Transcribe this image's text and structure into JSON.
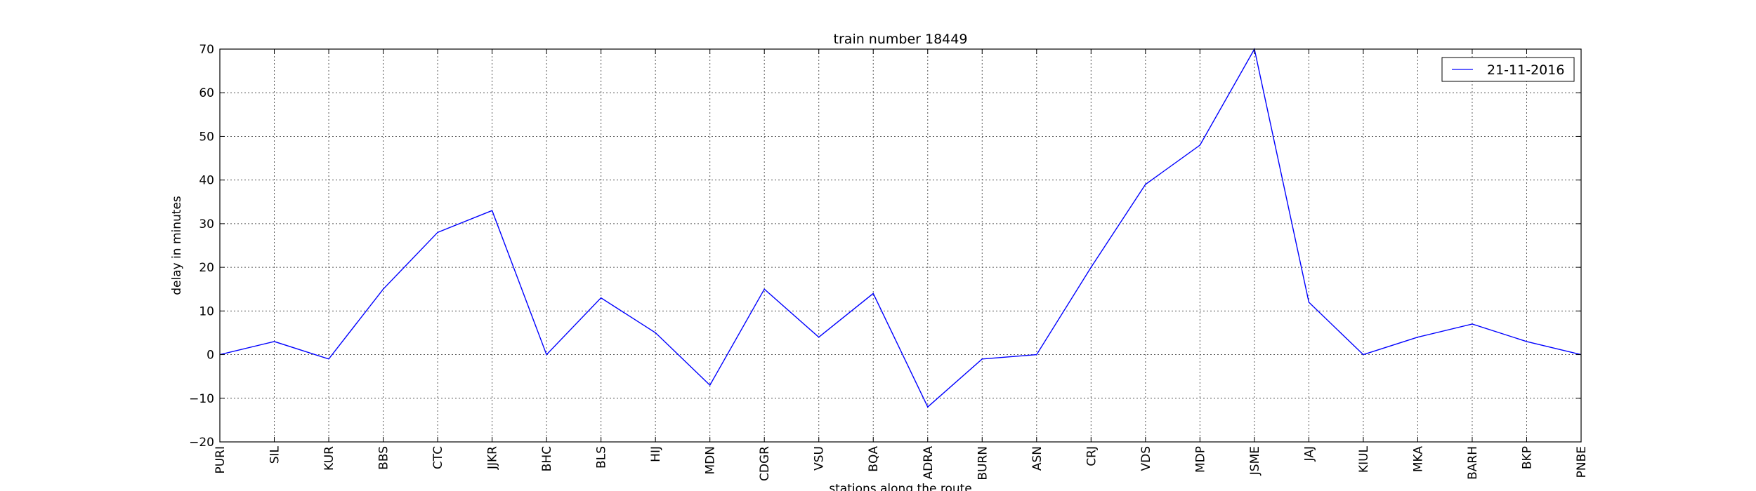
{
  "chart_data": {
    "type": "line",
    "title": "train number 18449",
    "xlabel": "stations along the route",
    "ylabel": "delay in minutes",
    "categories": [
      "PURI",
      "SIL",
      "KUR",
      "BBS",
      "CTC",
      "JJKR",
      "BHC",
      "BLS",
      "HIJ",
      "MDN",
      "CDGR",
      "VSU",
      "BQA",
      "ADRA",
      "BURN",
      "ASN",
      "CRJ",
      "VDS",
      "MDP",
      "JSME",
      "JAJ",
      "KIUL",
      "MKA",
      "BARH",
      "BKP",
      "PNBE"
    ],
    "series": [
      {
        "name": "21-11-2016",
        "color": "#0000ff",
        "values": [
          0,
          3,
          -1,
          15,
          28,
          33,
          0,
          13,
          5,
          -7,
          15,
          4,
          14,
          -12,
          -1,
          0,
          20,
          39,
          48,
          70,
          12,
          0,
          4,
          7,
          3,
          0
        ]
      }
    ],
    "ylim": [
      -20,
      70
    ],
    "yticks": [
      -20,
      -10,
      0,
      10,
      20,
      30,
      40,
      50,
      60,
      70
    ],
    "grid": true,
    "legend_position": "top-right"
  }
}
